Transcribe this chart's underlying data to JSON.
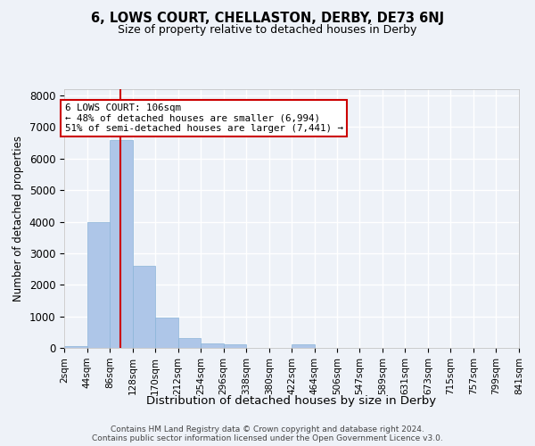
{
  "title": "6, LOWS COURT, CHELLASTON, DERBY, DE73 6NJ",
  "subtitle": "Size of property relative to detached houses in Derby",
  "xlabel": "Distribution of detached houses by size in Derby",
  "ylabel": "Number of detached properties",
  "bar_color": "#aec6e8",
  "bar_edge_color": "#8ab4d8",
  "background_color": "#eef2f8",
  "grid_color": "#ffffff",
  "red_line_x": 106,
  "bin_edges": [
    2,
    44,
    86,
    128,
    170,
    212,
    254,
    296,
    338,
    380,
    422,
    464,
    506,
    547,
    589,
    631,
    673,
    715,
    757,
    799,
    841
  ],
  "bar_heights": [
    55,
    4000,
    6600,
    2600,
    950,
    300,
    150,
    100,
    0,
    0,
    100,
    0,
    0,
    0,
    0,
    0,
    0,
    0,
    0,
    0
  ],
  "ylim": [
    0,
    8200
  ],
  "yticks": [
    0,
    1000,
    2000,
    3000,
    4000,
    5000,
    6000,
    7000,
    8000
  ],
  "annotation_line1": "6 LOWS COURT: 106sqm",
  "annotation_line2": "← 48% of detached houses are smaller (6,994)",
  "annotation_line3": "51% of semi-detached houses are larger (7,441) →",
  "annotation_box_color": "#ffffff",
  "annotation_border_color": "#cc0000",
  "footnote1": "Contains HM Land Registry data © Crown copyright and database right 2024.",
  "footnote2": "Contains public sector information licensed under the Open Government Licence v3.0.",
  "tick_labels": [
    "2sqm",
    "44sqm",
    "86sqm",
    "128sqm",
    "170sqm",
    "212sqm",
    "254sqm",
    "296sqm",
    "338sqm",
    "380sqm",
    "422sqm",
    "464sqm",
    "506sqm",
    "547sqm",
    "589sqm",
    "631sqm",
    "673sqm",
    "715sqm",
    "757sqm",
    "799sqm",
    "841sqm"
  ]
}
